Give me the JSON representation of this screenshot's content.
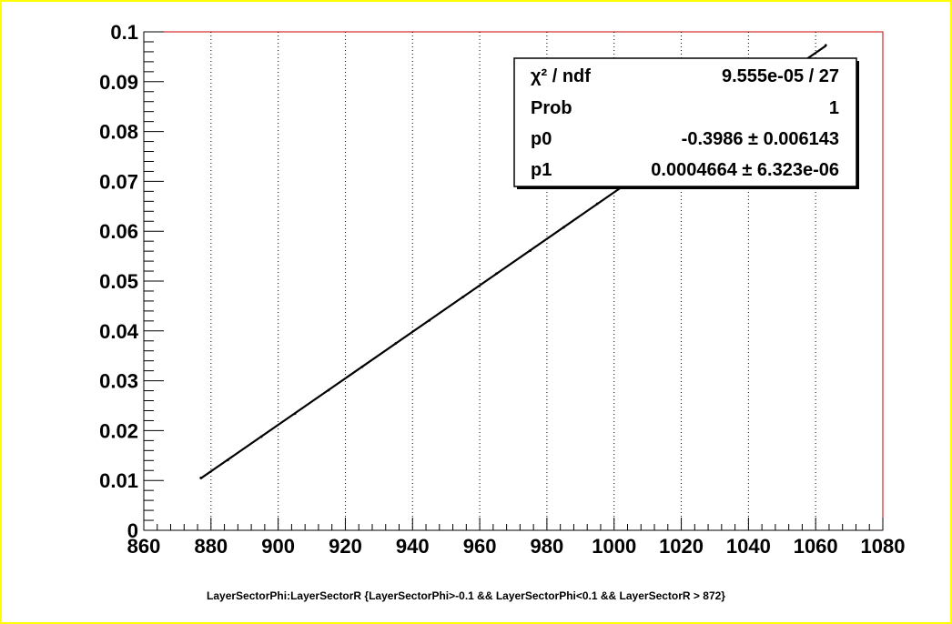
{
  "colors": {
    "canvas_border": "#ffff00",
    "frame": "#cc0000",
    "grid": "#000000",
    "series": "#000000"
  },
  "chart_data": {
    "type": "scatter",
    "title": "",
    "xlabel": "",
    "ylabel": "",
    "caption": "LayerSectorPhi:LayerSectorR {LayerSectorPhi>-0.1 && LayerSectorPhi<0.1 && LayerSectorR > 872}",
    "xlim": [
      860,
      1080
    ],
    "ylim": [
      0,
      0.1
    ],
    "grid": {
      "x": true,
      "y": false
    },
    "x_ticks": [
      "860",
      "880",
      "900",
      "920",
      "940",
      "960",
      "980",
      "1000",
      "1020",
      "1040",
      "1060",
      "1080"
    ],
    "y_ticks": [
      "0",
      "0.01",
      "0.02",
      "0.03",
      "0.04",
      "0.05",
      "0.06",
      "0.07",
      "0.08",
      "0.09",
      "0.1"
    ],
    "series": [
      {
        "x": [
          877,
          885,
          895,
          905,
          915,
          925,
          935,
          945,
          955,
          965,
          975,
          985,
          995,
          1005,
          1015,
          1025,
          1035,
          1045,
          1055,
          1063
        ],
        "y": [
          0.0105,
          0.0141,
          0.0188,
          0.0234,
          0.0281,
          0.0328,
          0.0375,
          0.0421,
          0.0468,
          0.0515,
          0.0561,
          0.0608,
          0.0655,
          0.0702,
          0.0748,
          0.0795,
          0.0842,
          0.0888,
          0.0935,
          0.0973
        ]
      }
    ],
    "fit": {
      "function": "pol1",
      "p0": -0.3986,
      "p1": 0.0004664,
      "x_range": [
        877,
        1063
      ]
    },
    "stats_box": {
      "position": "top-right",
      "rows": [
        {
          "label": "χ² / ndf",
          "value": "9.555e-05 / 27"
        },
        {
          "label": "Prob",
          "value": "1"
        },
        {
          "label": "p0",
          "value": "-0.3986 ± 0.006143"
        },
        {
          "label": "p1",
          "value": "0.0004664 ± 6.323e-06"
        }
      ]
    }
  }
}
